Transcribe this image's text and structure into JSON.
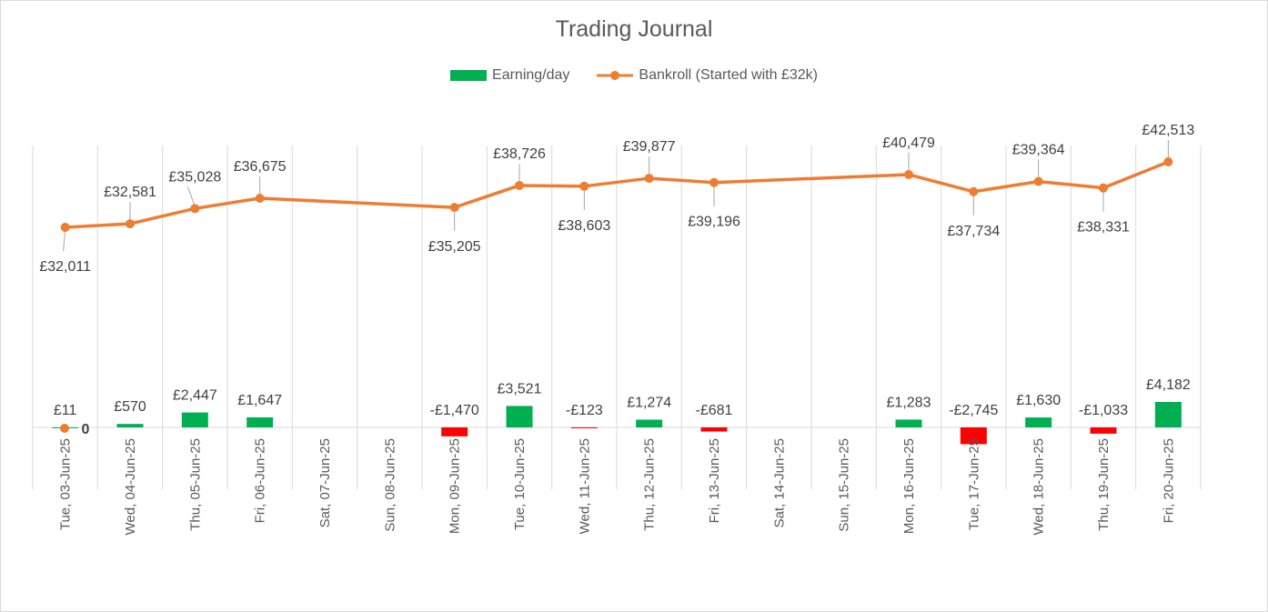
{
  "chart_data": {
    "type": "bar+line",
    "title": "Trading Journal",
    "categories": [
      "Tue, 03-Jun-25",
      "Wed, 04-Jun-25",
      "Thu, 05-Jun-25",
      "Fri, 06-Jun-25",
      "Sat, 07-Jun-25",
      "Sun, 08-Jun-25",
      "Mon, 09-Jun-25",
      "Tue, 10-Jun-25",
      "Wed, 11-Jun-25",
      "Thu, 12-Jun-25",
      "Fri, 13-Jun-25",
      "Sat, 14-Jun-25",
      "Sun, 15-Jun-25",
      "Mon, 16-Jun-25",
      "Tue, 17-Jun-25",
      "Wed, 18-Jun-25",
      "Thu, 19-Jun-25",
      "Fri, 20-Jun-25"
    ],
    "series": [
      {
        "name": "Earning/day",
        "type": "bar",
        "color_pos": "#00b050",
        "color_neg": "#ff0000",
        "values": [
          11,
          570,
          2447,
          1647,
          null,
          null,
          -1470,
          3521,
          -123,
          1274,
          -681,
          null,
          null,
          1283,
          -2745,
          1630,
          -1033,
          4182
        ],
        "labels": [
          "£11",
          "£570",
          "£2,447",
          "£1,647",
          "",
          "",
          "-£1,470",
          "£3,521",
          "-£123",
          "£1,274",
          "-£681",
          "",
          "",
          "£1,283",
          "-£2,745",
          "£1,630",
          "-£1,033",
          "£4,182"
        ]
      },
      {
        "name": "Bankroll (Started with £32k)",
        "type": "line",
        "color": "#ed7d31",
        "values": [
          32011,
          32581,
          35028,
          36675,
          null,
          null,
          35205,
          38726,
          38603,
          39877,
          39196,
          null,
          null,
          40479,
          37734,
          39364,
          38331,
          42513
        ],
        "labels": [
          "£32,011",
          "£32,581",
          "£35,028",
          "£36,675",
          "",
          "",
          "£35,205",
          "£38,726",
          "£38,603",
          "£39,877",
          "£39,196",
          "",
          "",
          "£40,479",
          "£37,734",
          "£39,364",
          "£38,331",
          "£42,513"
        ]
      }
    ],
    "zero_label": "0",
    "gridlines": "vertical",
    "legend_position": "top"
  }
}
